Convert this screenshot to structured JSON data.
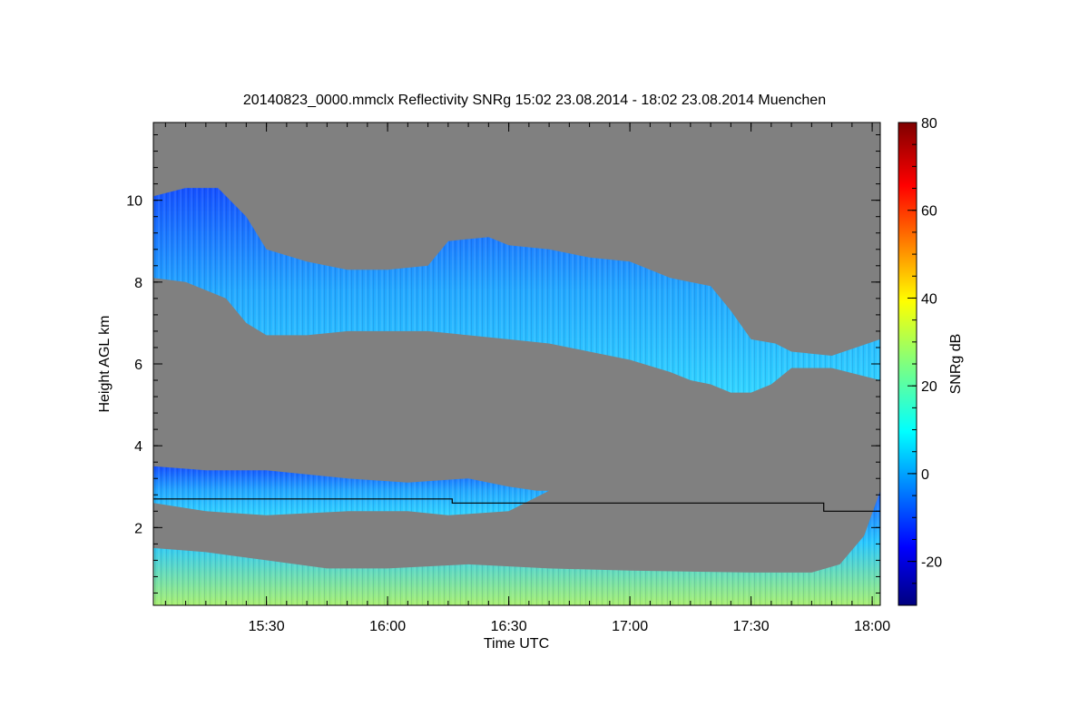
{
  "chart_data": {
    "type": "heatmap",
    "title": "20140823_0000.mmclx Reflectivity SNRg   15:02 23.08.2014 - 18:02 23.08.2014 Muenchen",
    "xlabel": "Time UTC",
    "ylabel": "Height AGL km",
    "x_range_minutes_utc": [
      902,
      1082
    ],
    "y_range_km": [
      0.1,
      11.9
    ],
    "x_ticks": [
      {
        "minutes": 930,
        "label": "15:30"
      },
      {
        "minutes": 960,
        "label": "16:00"
      },
      {
        "minutes": 990,
        "label": "16:30"
      },
      {
        "minutes": 1020,
        "label": "17:00"
      },
      {
        "minutes": 1050,
        "label": "17:30"
      },
      {
        "minutes": 1080,
        "label": "18:00"
      }
    ],
    "y_ticks": [
      2,
      4,
      6,
      8,
      10
    ],
    "background_color": "#808080",
    "colorbar": {
      "label": "SNRg dB",
      "range": [
        -30,
        80
      ],
      "ticks": [
        -20,
        0,
        20,
        40,
        60,
        80
      ],
      "colormap": "jet"
    },
    "layers": [
      {
        "name": "upper cloud",
        "base_km": [
          [
            902,
            8.1
          ],
          [
            910,
            8.0
          ],
          [
            915,
            7.8
          ],
          [
            920,
            7.6
          ],
          [
            925,
            7.0
          ],
          [
            930,
            6.7
          ],
          [
            940,
            6.7
          ],
          [
            950,
            6.8
          ],
          [
            960,
            6.8
          ],
          [
            970,
            6.8
          ],
          [
            980,
            6.7
          ],
          [
            990,
            6.6
          ],
          [
            1000,
            6.5
          ],
          [
            1010,
            6.3
          ],
          [
            1020,
            6.1
          ],
          [
            1030,
            5.8
          ],
          [
            1035,
            5.6
          ],
          [
            1040,
            5.5
          ],
          [
            1045,
            5.3
          ],
          [
            1050,
            5.3
          ],
          [
            1055,
            5.5
          ],
          [
            1060,
            5.9
          ],
          [
            1070,
            5.9
          ],
          [
            1082,
            5.6
          ]
        ],
        "top_km": [
          [
            902,
            10.1
          ],
          [
            910,
            10.3
          ],
          [
            918,
            10.3
          ],
          [
            925,
            9.6
          ],
          [
            930,
            8.8
          ],
          [
            940,
            8.5
          ],
          [
            950,
            8.3
          ],
          [
            960,
            8.3
          ],
          [
            970,
            8.4
          ],
          [
            975,
            9.0
          ],
          [
            985,
            9.1
          ],
          [
            990,
            8.9
          ],
          [
            1000,
            8.8
          ],
          [
            1010,
            8.6
          ],
          [
            1020,
            8.5
          ],
          [
            1030,
            8.1
          ],
          [
            1040,
            7.9
          ],
          [
            1045,
            7.3
          ],
          [
            1050,
            6.6
          ],
          [
            1056,
            6.5
          ],
          [
            1060,
            6.3
          ],
          [
            1070,
            6.2
          ],
          [
            1082,
            6.6
          ]
        ],
        "snr_db_range": [
          -10,
          20
        ]
      },
      {
        "name": "lower cloud layer",
        "base_km": [
          [
            902,
            2.6
          ],
          [
            915,
            2.4
          ],
          [
            930,
            2.3
          ],
          [
            950,
            2.4
          ],
          [
            965,
            2.4
          ],
          [
            975,
            2.3
          ],
          [
            990,
            2.4
          ],
          [
            998,
            2.8
          ],
          [
            1000,
            2.9
          ]
        ],
        "top_km": [
          [
            902,
            3.5
          ],
          [
            915,
            3.4
          ],
          [
            930,
            3.4
          ],
          [
            950,
            3.2
          ],
          [
            965,
            3.1
          ],
          [
            980,
            3.2
          ],
          [
            990,
            3.0
          ],
          [
            997,
            2.9
          ],
          [
            1000,
            2.9
          ]
        ],
        "snr_db_range": [
          -10,
          25
        ]
      },
      {
        "name": "boundary layer",
        "base_km": [
          [
            902,
            0.1
          ],
          [
            1082,
            0.1
          ]
        ],
        "top_km": [
          [
            902,
            1.5
          ],
          [
            915,
            1.4
          ],
          [
            930,
            1.2
          ],
          [
            945,
            1.0
          ],
          [
            960,
            1.0
          ],
          [
            980,
            1.1
          ],
          [
            1000,
            1.0
          ],
          [
            1020,
            0.95
          ],
          [
            1050,
            0.9
          ],
          [
            1065,
            0.9
          ],
          [
            1072,
            1.1
          ],
          [
            1078,
            1.8
          ],
          [
            1082,
            2.9
          ]
        ],
        "snr_db_range": [
          0,
          35
        ]
      }
    ],
    "line_series": {
      "color": "#000000",
      "points": [
        [
          902,
          2.7
        ],
        [
          976,
          2.7
        ],
        [
          976,
          2.6
        ],
        [
          1068,
          2.6
        ],
        [
          1068,
          2.4
        ],
        [
          1082,
          2.4
        ]
      ]
    }
  }
}
